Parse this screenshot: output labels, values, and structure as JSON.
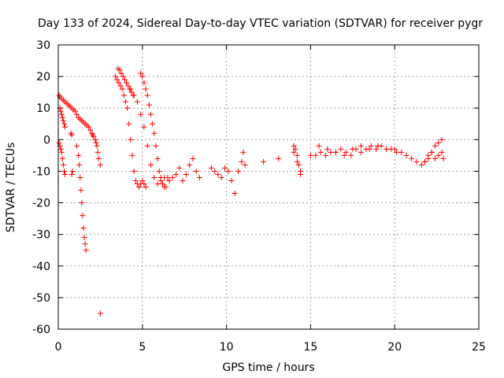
{
  "chart_data": {
    "type": "scatter",
    "title": "Day 133 of 2024, Sidereal Day-to-day VTEC variation (SDTVAR) for receiver pygr",
    "xlabel": "GPS time / hours",
    "ylabel": "SDTVAR / TECUs",
    "xlim": [
      0,
      25
    ],
    "ylim": [
      -60,
      30
    ],
    "xticks": [
      0,
      5,
      10,
      15,
      20,
      25
    ],
    "yticks": [
      -60,
      -50,
      -40,
      -30,
      -20,
      -10,
      0,
      10,
      20,
      30
    ],
    "grid": true,
    "marker": "+",
    "color": "#ff0000",
    "series": [
      {
        "name": "SDTVAR",
        "x": [
          0.05,
          0.1,
          0.2,
          0.3,
          0.4,
          0.5,
          0.6,
          0.7,
          0.8,
          0.9,
          1.0,
          1.1,
          1.2,
          1.3,
          1.4,
          1.5,
          1.6,
          1.7,
          1.8,
          1.9,
          2.0,
          2.05,
          2.1,
          0.05,
          0.1,
          0.15,
          0.2,
          0.25,
          0.3,
          0.35,
          0.4,
          0.1,
          0.15,
          0.2,
          0.25,
          0.3,
          0.35,
          0.4,
          0.75,
          0.8,
          0.85,
          0.8,
          1.1,
          1.2,
          1.25,
          1.3,
          1.35,
          1.4,
          1.45,
          1.5,
          1.55,
          1.6,
          1.65,
          2.2,
          2.25,
          2.3,
          2.35,
          2.4,
          2.5,
          3.4,
          3.5,
          3.6,
          3.7,
          3.8,
          3.9,
          4.0,
          4.1,
          4.2,
          4.3,
          4.4,
          4.5,
          4.6,
          4.7,
          4.8,
          4.9,
          5.0,
          5.1,
          5.2,
          3.55,
          3.65,
          3.75,
          3.85,
          3.95,
          4.05,
          4.15,
          4.25,
          4.35,
          4.45,
          4.9,
          5.0,
          5.1,
          5.2,
          5.3,
          5.4,
          5.5,
          5.6,
          5.7,
          5.8,
          5.9,
          6.0,
          6.1,
          6.2,
          6.3,
          4.3,
          4.5,
          4.7,
          4.9,
          5.1,
          5.3,
          5.5,
          5.7,
          5.9,
          6.1,
          6.3,
          6.5,
          6.2,
          6.4,
          6.6,
          6.8,
          7.0,
          7.2,
          7.4,
          7.6,
          7.8,
          8.0,
          8.2,
          8.4,
          9.1,
          9.3,
          9.5,
          9.7,
          9.9,
          10.1,
          10.3,
          10.5,
          10.7,
          10.9,
          11.0,
          11.1,
          12.2,
          13.1,
          14.0,
          14.2,
          14.4,
          14.0,
          14.1,
          14.2,
          14.3,
          14.4,
          15.0,
          15.3,
          15.6,
          15.9,
          16.2,
          16.5,
          16.8,
          17.1,
          17.4,
          17.7,
          18.0,
          18.3,
          18.6,
          18.9,
          19.2,
          19.5,
          19.8,
          20.1,
          20.4,
          20.7,
          21.0,
          21.3,
          21.6,
          21.8,
          22.0,
          22.2,
          22.4,
          22.6,
          22.8,
          15.5,
          16.0,
          16.5,
          17.0,
          17.5,
          18.0,
          18.5,
          19.0,
          19.5,
          20.0,
          21.8,
          22.0,
          22.2,
          22.4,
          22.6,
          22.8,
          22.9,
          2.5
        ],
        "y": [
          14,
          13.5,
          13,
          12.5,
          12,
          11.5,
          11,
          10.5,
          10,
          9.5,
          9,
          8,
          7,
          6.5,
          6,
          5.5,
          5,
          4.5,
          4,
          3,
          2,
          1.5,
          1,
          -1,
          -2,
          -3,
          -4,
          -6,
          -8,
          -10,
          -11,
          10,
          9,
          8,
          7,
          6,
          5,
          4,
          2,
          1.5,
          -10,
          -11,
          -2,
          -5,
          -8,
          -12,
          -16,
          -20,
          -24,
          -28,
          -31,
          -33,
          -35,
          0,
          -1,
          -2,
          -4,
          -6,
          -8,
          20,
          19,
          18,
          17,
          16,
          14,
          12,
          10,
          5,
          0,
          -5,
          -10,
          -13,
          -14,
          -15,
          -14,
          -13,
          -14,
          -15,
          22.5,
          22,
          21,
          20,
          19,
          18,
          17,
          16,
          15,
          14,
          21,
          20,
          18,
          16,
          14,
          11,
          8,
          5,
          2,
          -2,
          -6,
          -10,
          -12,
          -14,
          -15,
          16,
          14,
          12,
          8,
          4,
          -2,
          -8,
          -12,
          -14,
          -13,
          -12,
          -12,
          -14,
          -15,
          -13,
          -12,
          -11,
          -9,
          -13,
          -11,
          -8,
          -6,
          -10,
          -12,
          -9,
          -10,
          -11,
          -12,
          -9,
          -10,
          -13,
          -17,
          -10,
          -7,
          -4,
          -8,
          -7,
          -6,
          -4,
          -7,
          -11,
          -2,
          -3,
          -5,
          -8,
          -10,
          -5,
          -5,
          -4,
          -5,
          -4,
          -4,
          -3,
          -4,
          -5,
          -3,
          -4,
          -3,
          -2,
          -3,
          -2,
          -3,
          -3,
          -4,
          -4,
          -5,
          -6,
          -7,
          -8,
          -7,
          -6,
          -4,
          -2,
          -1,
          0,
          -2,
          -3,
          -4,
          -5,
          -3,
          -2,
          -3,
          -2,
          -3,
          -3,
          -7,
          -5,
          -4,
          -6,
          -5,
          -4,
          -6,
          -55
        ]
      }
    ]
  }
}
